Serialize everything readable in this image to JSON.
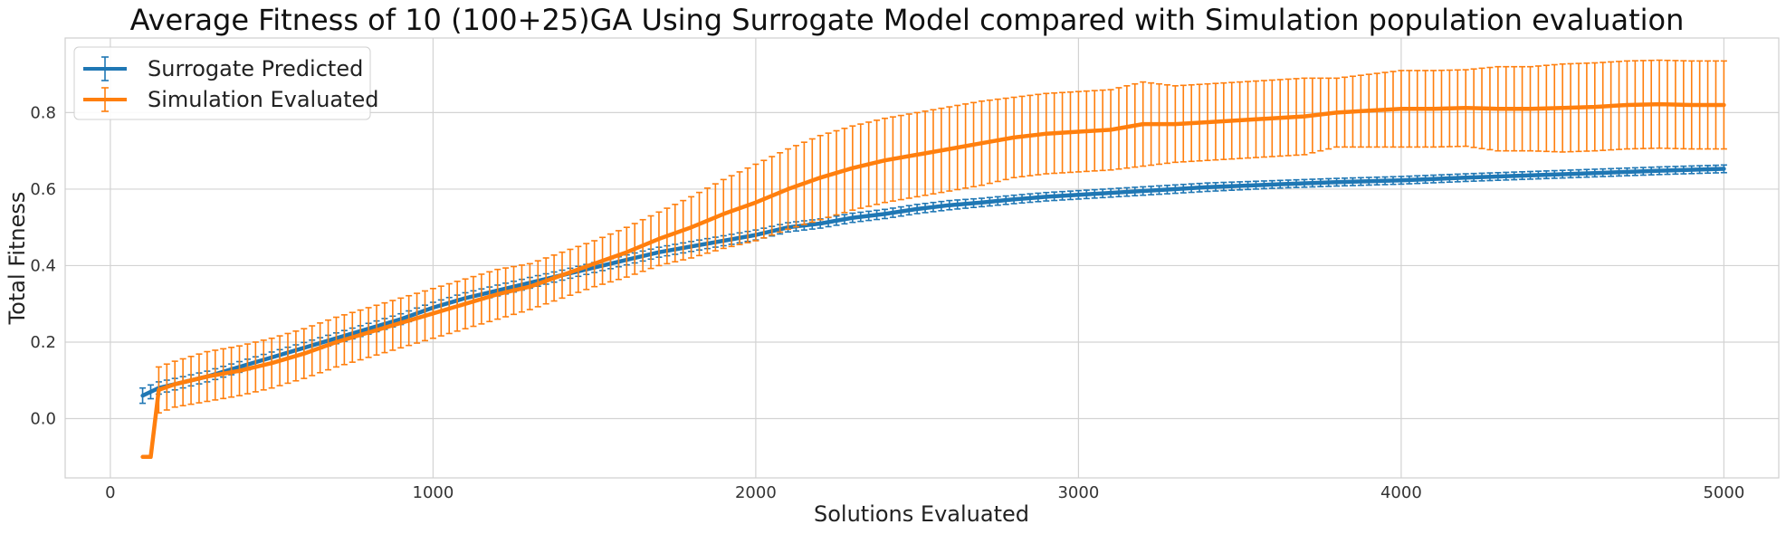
{
  "chart_data": {
    "type": "line",
    "title": "Average Fitness of 10 (100+25)GA Using Surrogate Model compared with Simulation population evaluation",
    "xlabel": "Solutions Evaluated",
    "ylabel": "Total Fitness",
    "xlim": [
      -140,
      5170
    ],
    "ylim": [
      -0.155,
      0.995
    ],
    "xticks": [
      0,
      1000,
      2000,
      3000,
      4000,
      5000
    ],
    "yticks": [
      0.0,
      0.2,
      0.4,
      0.6,
      0.8
    ],
    "grid": true,
    "legend_position": "top-left",
    "errorbar_step": 25,
    "series": [
      {
        "name": "Surrogate Predicted",
        "color": "#1f77b4",
        "x": [
          100,
          125,
          150,
          200,
          300,
          400,
          500,
          600,
          700,
          800,
          900,
          1000,
          1100,
          1200,
          1300,
          1400,
          1500,
          1600,
          1700,
          1800,
          1900,
          2000,
          2100,
          2200,
          2300,
          2400,
          2500,
          2600,
          2700,
          2800,
          2900,
          3000,
          3200,
          3400,
          3600,
          3800,
          4000,
          4200,
          4400,
          4600,
          4800,
          5000
        ],
        "y": [
          0.06,
          0.07,
          0.08,
          0.09,
          0.11,
          0.135,
          0.16,
          0.185,
          0.21,
          0.235,
          0.26,
          0.29,
          0.315,
          0.335,
          0.355,
          0.375,
          0.395,
          0.415,
          0.435,
          0.45,
          0.465,
          0.48,
          0.5,
          0.51,
          0.525,
          0.535,
          0.548,
          0.558,
          0.565,
          0.573,
          0.58,
          0.585,
          0.595,
          0.605,
          0.612,
          0.618,
          0.623,
          0.63,
          0.636,
          0.642,
          0.648,
          0.653
        ],
        "err": [
          0.02,
          0.018,
          0.016,
          0.015,
          0.014,
          0.014,
          0.014,
          0.014,
          0.014,
          0.014,
          0.014,
          0.014,
          0.014,
          0.014,
          0.014,
          0.013,
          0.013,
          0.013,
          0.013,
          0.013,
          0.013,
          0.013,
          0.012,
          0.012,
          0.012,
          0.012,
          0.012,
          0.012,
          0.011,
          0.011,
          0.011,
          0.011,
          0.011,
          0.011,
          0.01,
          0.01,
          0.01,
          0.01,
          0.01,
          0.01,
          0.01,
          0.01
        ]
      },
      {
        "name": "Simulation Evaluated",
        "color": "#ff7f0e",
        "x": [
          100,
          125,
          150,
          200,
          300,
          400,
          500,
          600,
          700,
          800,
          900,
          1000,
          1100,
          1200,
          1300,
          1400,
          1500,
          1600,
          1700,
          1800,
          1900,
          2000,
          2100,
          2200,
          2300,
          2400,
          2500,
          2600,
          2700,
          2800,
          2900,
          3000,
          3100,
          3200,
          3300,
          3400,
          3500,
          3600,
          3700,
          3800,
          3900,
          4000,
          4100,
          4200,
          4300,
          4400,
          4500,
          4600,
          4700,
          4800,
          4900,
          5000
        ],
        "y": [
          -0.1,
          -0.1,
          0.075,
          0.09,
          0.11,
          0.125,
          0.145,
          0.17,
          0.2,
          0.225,
          0.25,
          0.275,
          0.3,
          0.325,
          0.345,
          0.375,
          0.405,
          0.435,
          0.47,
          0.5,
          0.535,
          0.565,
          0.6,
          0.63,
          0.655,
          0.675,
          0.69,
          0.705,
          0.72,
          0.735,
          0.745,
          0.75,
          0.755,
          0.77,
          0.77,
          0.775,
          0.78,
          0.785,
          0.79,
          0.8,
          0.805,
          0.81,
          0.81,
          0.812,
          0.81,
          0.81,
          0.812,
          0.815,
          0.82,
          0.822,
          0.82,
          0.82
        ],
        "err": [
          0.0,
          0.0,
          0.06,
          0.06,
          0.065,
          0.065,
          0.065,
          0.065,
          0.065,
          0.065,
          0.065,
          0.065,
          0.065,
          0.065,
          0.06,
          0.06,
          0.06,
          0.065,
          0.07,
          0.08,
          0.09,
          0.1,
          0.105,
          0.11,
          0.11,
          0.11,
          0.11,
          0.11,
          0.11,
          0.105,
          0.105,
          0.105,
          0.105,
          0.11,
          0.1,
          0.1,
          0.1,
          0.1,
          0.1,
          0.09,
          0.095,
          0.1,
          0.1,
          0.1,
          0.11,
          0.11,
          0.115,
          0.115,
          0.115,
          0.115,
          0.115,
          0.115
        ]
      }
    ]
  }
}
